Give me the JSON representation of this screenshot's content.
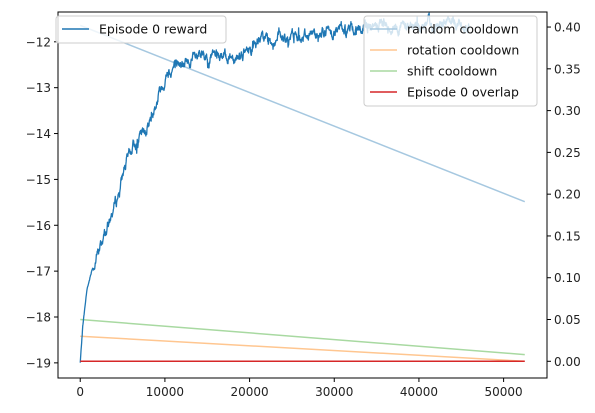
{
  "chart_data": {
    "type": "line",
    "title": "",
    "xlabel": "",
    "ylabel": "",
    "grid": false,
    "x_range": [
      0,
      52500
    ],
    "xlim": [
      -2625,
      55125
    ],
    "xticks": [
      0,
      10000,
      20000,
      30000,
      40000,
      50000
    ],
    "left_axis": {
      "ylim": [
        -19.33,
        -11.35
      ],
      "yticks": [
        -19,
        -18,
        -17,
        -16,
        -15,
        -14,
        -13,
        -12
      ]
    },
    "right_axis": {
      "ylim": [
        -0.02,
        0.418
      ],
      "yticks": [
        0.0,
        0.05,
        0.1,
        0.15,
        0.2,
        0.25,
        0.3,
        0.35,
        0.4
      ]
    },
    "series": [
      {
        "name": "Episode 0 reward",
        "axis": "left",
        "color": "#1f77b4",
        "noisy": true,
        "points": [
          [
            0,
            -19.0
          ],
          [
            300,
            -18.2
          ],
          [
            800,
            -17.4
          ],
          [
            1500,
            -16.9
          ],
          [
            2500,
            -16.4
          ],
          [
            3500,
            -15.9
          ],
          [
            4500,
            -15.3
          ],
          [
            5500,
            -14.6
          ],
          [
            6500,
            -14.2
          ],
          [
            7500,
            -14.0
          ],
          [
            8500,
            -13.6
          ],
          [
            9500,
            -13.05
          ],
          [
            10500,
            -12.6
          ],
          [
            11500,
            -12.5
          ],
          [
            12500,
            -12.5
          ],
          [
            13500,
            -12.4
          ],
          [
            15000,
            -12.3
          ],
          [
            16500,
            -12.35
          ],
          [
            18000,
            -12.3
          ],
          [
            19500,
            -12.25
          ],
          [
            21000,
            -12.0
          ],
          [
            22500,
            -11.95
          ],
          [
            24000,
            -11.95
          ],
          [
            26000,
            -11.85
          ],
          [
            28000,
            -11.8
          ],
          [
            30000,
            -11.75
          ],
          [
            32000,
            -11.7
          ],
          [
            34000,
            -11.68
          ],
          [
            36000,
            -11.68
          ],
          [
            38000,
            -11.66
          ],
          [
            40000,
            -11.65
          ],
          [
            42000,
            -11.63
          ],
          [
            44000,
            -11.62
          ],
          [
            46000,
            -11.6
          ]
        ]
      },
      {
        "name": "random cooldown",
        "axis": "right",
        "color": "#a6c8e0",
        "points": [
          [
            0,
            0.402
          ],
          [
            52500,
            0.191
          ]
        ]
      },
      {
        "name": "rotation cooldown",
        "axis": "right",
        "color": "#ffc690",
        "points": [
          [
            0,
            0.03
          ],
          [
            52500,
            0.0
          ]
        ]
      },
      {
        "name": "shift cooldown",
        "axis": "right",
        "color": "#a8d9a1",
        "points": [
          [
            0,
            0.05
          ],
          [
            52500,
            0.008
          ]
        ]
      },
      {
        "name": "Episode 0 overlap",
        "axis": "right",
        "color": "#d62728",
        "points": [
          [
            0,
            0.0
          ],
          [
            52500,
            0.0
          ]
        ]
      }
    ],
    "legends": [
      {
        "placement": "upper-left",
        "entries": [
          "Episode 0 reward"
        ]
      },
      {
        "placement": "upper-right",
        "entries": [
          "random cooldown",
          "rotation cooldown",
          "shift cooldown",
          "Episode 0 overlap"
        ]
      }
    ]
  }
}
